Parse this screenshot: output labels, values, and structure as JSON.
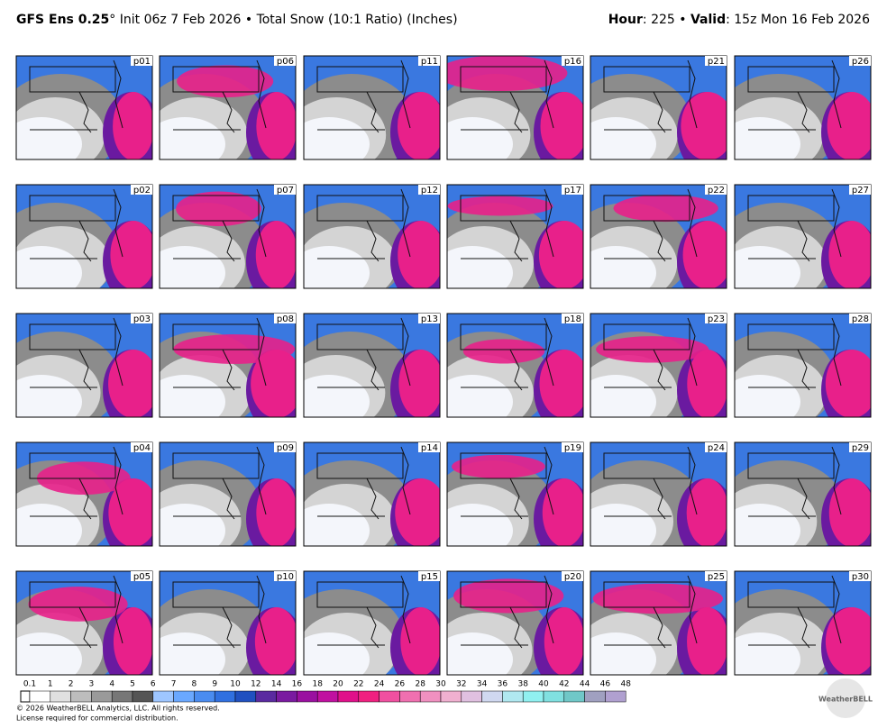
{
  "header": {
    "model": "GFS Ens 0.25",
    "title_rest": "° Init 06z 7 Feb 2026 • Total Snow (10:1 Ratio) (Inches)",
    "hour_label": "Hour",
    "hour_value": ": 225 • ",
    "valid_label": "Valid",
    "valid_value": ": 15z Mon 16 Feb 2026"
  },
  "panels": [
    [
      "p01",
      "p06",
      "p11",
      "p16",
      "p21",
      "p26"
    ],
    [
      "p02",
      "p07",
      "p12",
      "p17",
      "p22",
      "p27"
    ],
    [
      "p03",
      "p08",
      "p13",
      "p18",
      "p23",
      "p28"
    ],
    [
      "p04",
      "p09",
      "p14",
      "p19",
      "p24",
      "p29"
    ],
    [
      "p05",
      "p10",
      "p15",
      "p20",
      "p25",
      "p30"
    ]
  ],
  "colorbar": {
    "labels": [
      "0.1",
      "1",
      "2",
      "3",
      "4",
      "5",
      "6",
      "7",
      "8",
      "9",
      "10",
      "12",
      "14",
      "16",
      "18",
      "20",
      "22",
      "24",
      "26",
      "28",
      "30",
      "32",
      "34",
      "36",
      "38",
      "40",
      "42",
      "44",
      "46",
      "48"
    ]
  },
  "footer": {
    "copyright": "© 2026 WeatherBELL Analytics, LLC. All rights reserved.",
    "license": "License required for commercial distribution.",
    "logo": "WeatherBELL"
  }
}
